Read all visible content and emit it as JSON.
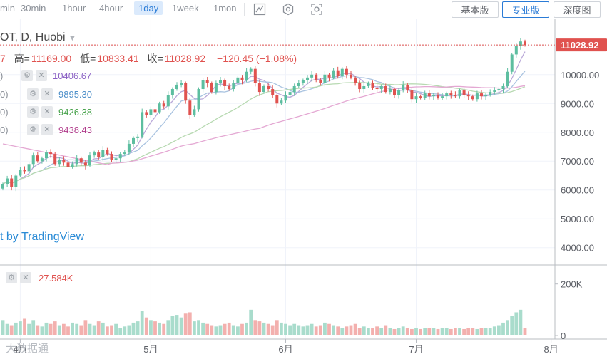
{
  "toolbar": {
    "timeframes": [
      "min",
      "30min",
      "1hour",
      "4hour",
      "1day",
      "1week",
      "1mon"
    ],
    "active_timeframe": "1day",
    "tools": [
      "line-chart-icon",
      "hexagon-settings-icon",
      "camera-icon"
    ],
    "versions": [
      "基本版",
      "专业版",
      "深度图"
    ],
    "active_version": "专业版"
  },
  "header": {
    "symbol": "OT, D, Huobi",
    "ohlc_prefix": "7",
    "high_label": "高=",
    "high": "11169.00",
    "low_label": "低=",
    "low": "10833.41",
    "close_label": "收=",
    "close": "11028.92",
    "change": "−120.45 (−1.08%)"
  },
  "moving_averages": [
    {
      "prefix": ")",
      "value": "10406.67",
      "color": "#8a5fc4"
    },
    {
      "prefix": "0)",
      "value": "9895.30",
      "color": "#4d8fc9"
    },
    {
      "prefix": "0)",
      "value": "9426.38",
      "color": "#43a047"
    },
    {
      "prefix": "0)",
      "value": "9438.43",
      "color": "#b03a8a"
    }
  ],
  "volume": {
    "value": "27.584K",
    "color": "#e0524f"
  },
  "watermark": "t by TradingView",
  "bottom_logo": "大数据通",
  "last_price_label": "11028.92",
  "colors": {
    "up": "#5dbea0",
    "down": "#e0524f",
    "up_vol": "#a9dccc",
    "down_vol": "#f3b0ae",
    "ma1": "#b9a8d8",
    "ma2": "#a9c3e0",
    "ma3": "#b7d9b1",
    "ma4": "#e4a8d3"
  },
  "chart_data": {
    "type": "candlestick",
    "y_ticks": [
      "11000.00",
      "10000.00",
      "9000.00",
      "8000.00",
      "7000.00",
      "6000.00",
      "5000.00",
      "4000.00"
    ],
    "y_range": [
      3400,
      11600
    ],
    "volume_ticks": [
      "200K",
      "0"
    ],
    "volume_range": [
      0,
      260
    ],
    "x_labels": [
      "4月",
      "5月",
      "6月",
      "7月",
      "8月"
    ],
    "x_label_dates": [
      "2020-04-01",
      "2020-05-01",
      "2020-06-01",
      "2020-07-01",
      "2020-08-01"
    ],
    "start_date": "2020-03-28",
    "close": [
      6200,
      6400,
      6100,
      6500,
      6700,
      6650,
      6900,
      7200,
      7000,
      7100,
      7300,
      7250,
      6900,
      7050,
      6950,
      6800,
      6900,
      7100,
      6950,
      6850,
      7200,
      7300,
      7150,
      7400,
      7250,
      7050,
      7100,
      7250,
      7300,
      7600,
      7800,
      7850,
      8700,
      8600,
      8800,
      8700,
      9000,
      8900,
      9300,
      9500,
      9650,
      9700,
      9100,
      8600,
      8800,
      9500,
      9800,
      9700,
      9400,
      9700,
      9800,
      9600,
      9500,
      9700,
      9900,
      9800,
      10100,
      10200,
      9700,
      9400,
      9600,
      9500,
      9300,
      9000,
      9100,
      9300,
      9400,
      9600,
      9700,
      9800,
      9900,
      10000,
      9800,
      9700,
      10000,
      9900,
      10150,
      9950,
      10200,
      10000,
      9900,
      9700,
      9500,
      9600,
      9700,
      9550,
      9500,
      9600,
      9400,
      9500,
      9300,
      9450,
      9650,
      9450,
      9150,
      9250,
      9200,
      9350,
      9250,
      9300,
      9200,
      9250,
      9350,
      9300,
      9250,
      9450,
      9300,
      9250,
      9150,
      9350,
      9250,
      9300,
      9400,
      9450,
      9500,
      9600,
      10100,
      10700,
      11000,
      11150,
      11029
    ],
    "volume": [
      60,
      45,
      40,
      50,
      55,
      65,
      45,
      60,
      40,
      35,
      50,
      45,
      55,
      40,
      45,
      35,
      50,
      45,
      40,
      60,
      45,
      40,
      55,
      50,
      35,
      40,
      45,
      30,
      35,
      40,
      50,
      55,
      95,
      70,
      60,
      55,
      50,
      45,
      60,
      75,
      80,
      70,
      85,
      90,
      55,
      60,
      50,
      45,
      40,
      35,
      40,
      45,
      50,
      40,
      35,
      45,
      50,
      100,
      60,
      55,
      50,
      45,
      40,
      60,
      50,
      45,
      40,
      45,
      40,
      35,
      40,
      45,
      35,
      40,
      50,
      45,
      40,
      35,
      30,
      35,
      40,
      45,
      30,
      35,
      30,
      30,
      35,
      30,
      40,
      30,
      25,
      30,
      35,
      30,
      25,
      30,
      25,
      30,
      28,
      30,
      25,
      28,
      30,
      25,
      28,
      30,
      25,
      28,
      30,
      25,
      28,
      30,
      28,
      35,
      40,
      50,
      60,
      75,
      90,
      100,
      28
    ]
  }
}
